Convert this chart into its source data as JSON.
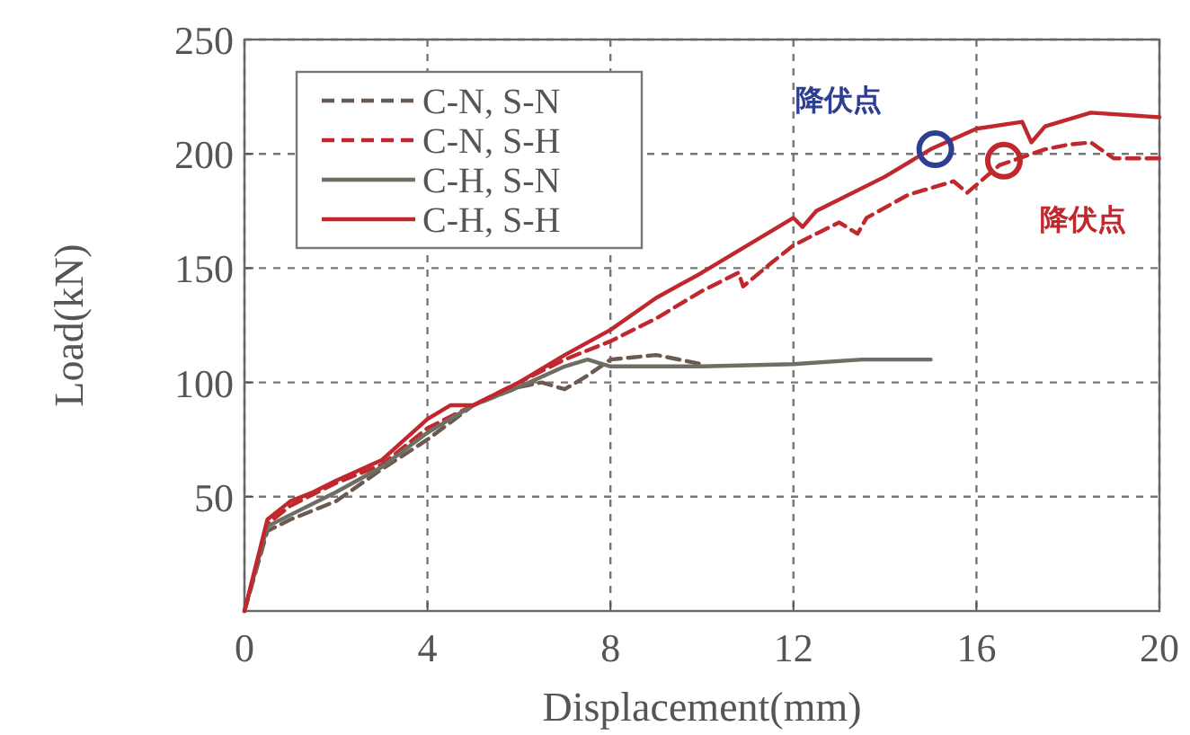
{
  "chart_data": {
    "type": "line",
    "xlabel": "Displacement(mm)",
    "ylabel": "Load(kN)",
    "xlim": [
      0,
      20
    ],
    "ylim": [
      0,
      250
    ],
    "xticks": [
      0,
      4,
      8,
      12,
      16,
      20
    ],
    "yticks": [
      50,
      100,
      150,
      200,
      250
    ],
    "grid": true,
    "legend": "top left",
    "series": [
      {
        "name": "C-N, S-N",
        "color": "#6b5a50",
        "line_style": "dashed",
        "x": [
          0,
          0.5,
          1,
          2,
          3,
          4,
          5,
          6,
          6.5,
          7,
          7.5,
          8,
          9,
          10
        ],
        "values": [
          0,
          35,
          40,
          48,
          62,
          75,
          90,
          98,
          100,
          97,
          103,
          110,
          112,
          108
        ]
      },
      {
        "name": "C-N, S-H",
        "color": "#c0282d",
        "line_style": "dashed",
        "x": [
          0,
          0.5,
          1,
          2,
          3,
          4,
          5,
          6,
          7,
          8,
          9,
          10,
          10.8,
          10.9,
          11.5,
          12,
          13,
          13.4,
          13.6,
          14.5,
          15.5,
          15.8,
          16.5,
          17.5,
          18,
          18.5,
          19,
          20
        ],
        "values": [
          0,
          38,
          46,
          56,
          64,
          80,
          90,
          100,
          110,
          118,
          128,
          140,
          148,
          142,
          152,
          160,
          170,
          165,
          172,
          182,
          188,
          183,
          195,
          202,
          204,
          205,
          198,
          198
        ]
      },
      {
        "name": "C-H, S-N",
        "color": "#6e6e64",
        "line_style": "solid",
        "x": [
          0,
          0.5,
          1,
          2,
          3,
          4,
          5,
          6,
          7,
          7.5,
          8,
          10,
          12,
          13.5,
          15
        ],
        "values": [
          0,
          37,
          42,
          52,
          63,
          78,
          90,
          98,
          107,
          110,
          107,
          107,
          108,
          110,
          110
        ]
      },
      {
        "name": "C-H, S-H",
        "color": "#c0282d",
        "line_style": "solid",
        "x": [
          0,
          0.5,
          1,
          1.5,
          2,
          3,
          4,
          4.5,
          5,
          6,
          7,
          8,
          9,
          10,
          11,
          12,
          12.2,
          12.5,
          14,
          15,
          16,
          17,
          17.2,
          17.5,
          18.5,
          20
        ],
        "values": [
          0,
          40,
          48,
          52,
          57,
          66,
          84,
          90,
          90,
          100,
          112,
          123,
          137,
          148,
          160,
          172,
          168,
          175,
          190,
          202,
          211,
          214,
          205,
          212,
          218,
          216
        ]
      }
    ],
    "annotations": [
      {
        "text": "降伏点",
        "x": 15.1,
        "y": 202
      },
      {
        "text": "降伏点",
        "x": 16.6,
        "y": 197
      }
    ]
  }
}
